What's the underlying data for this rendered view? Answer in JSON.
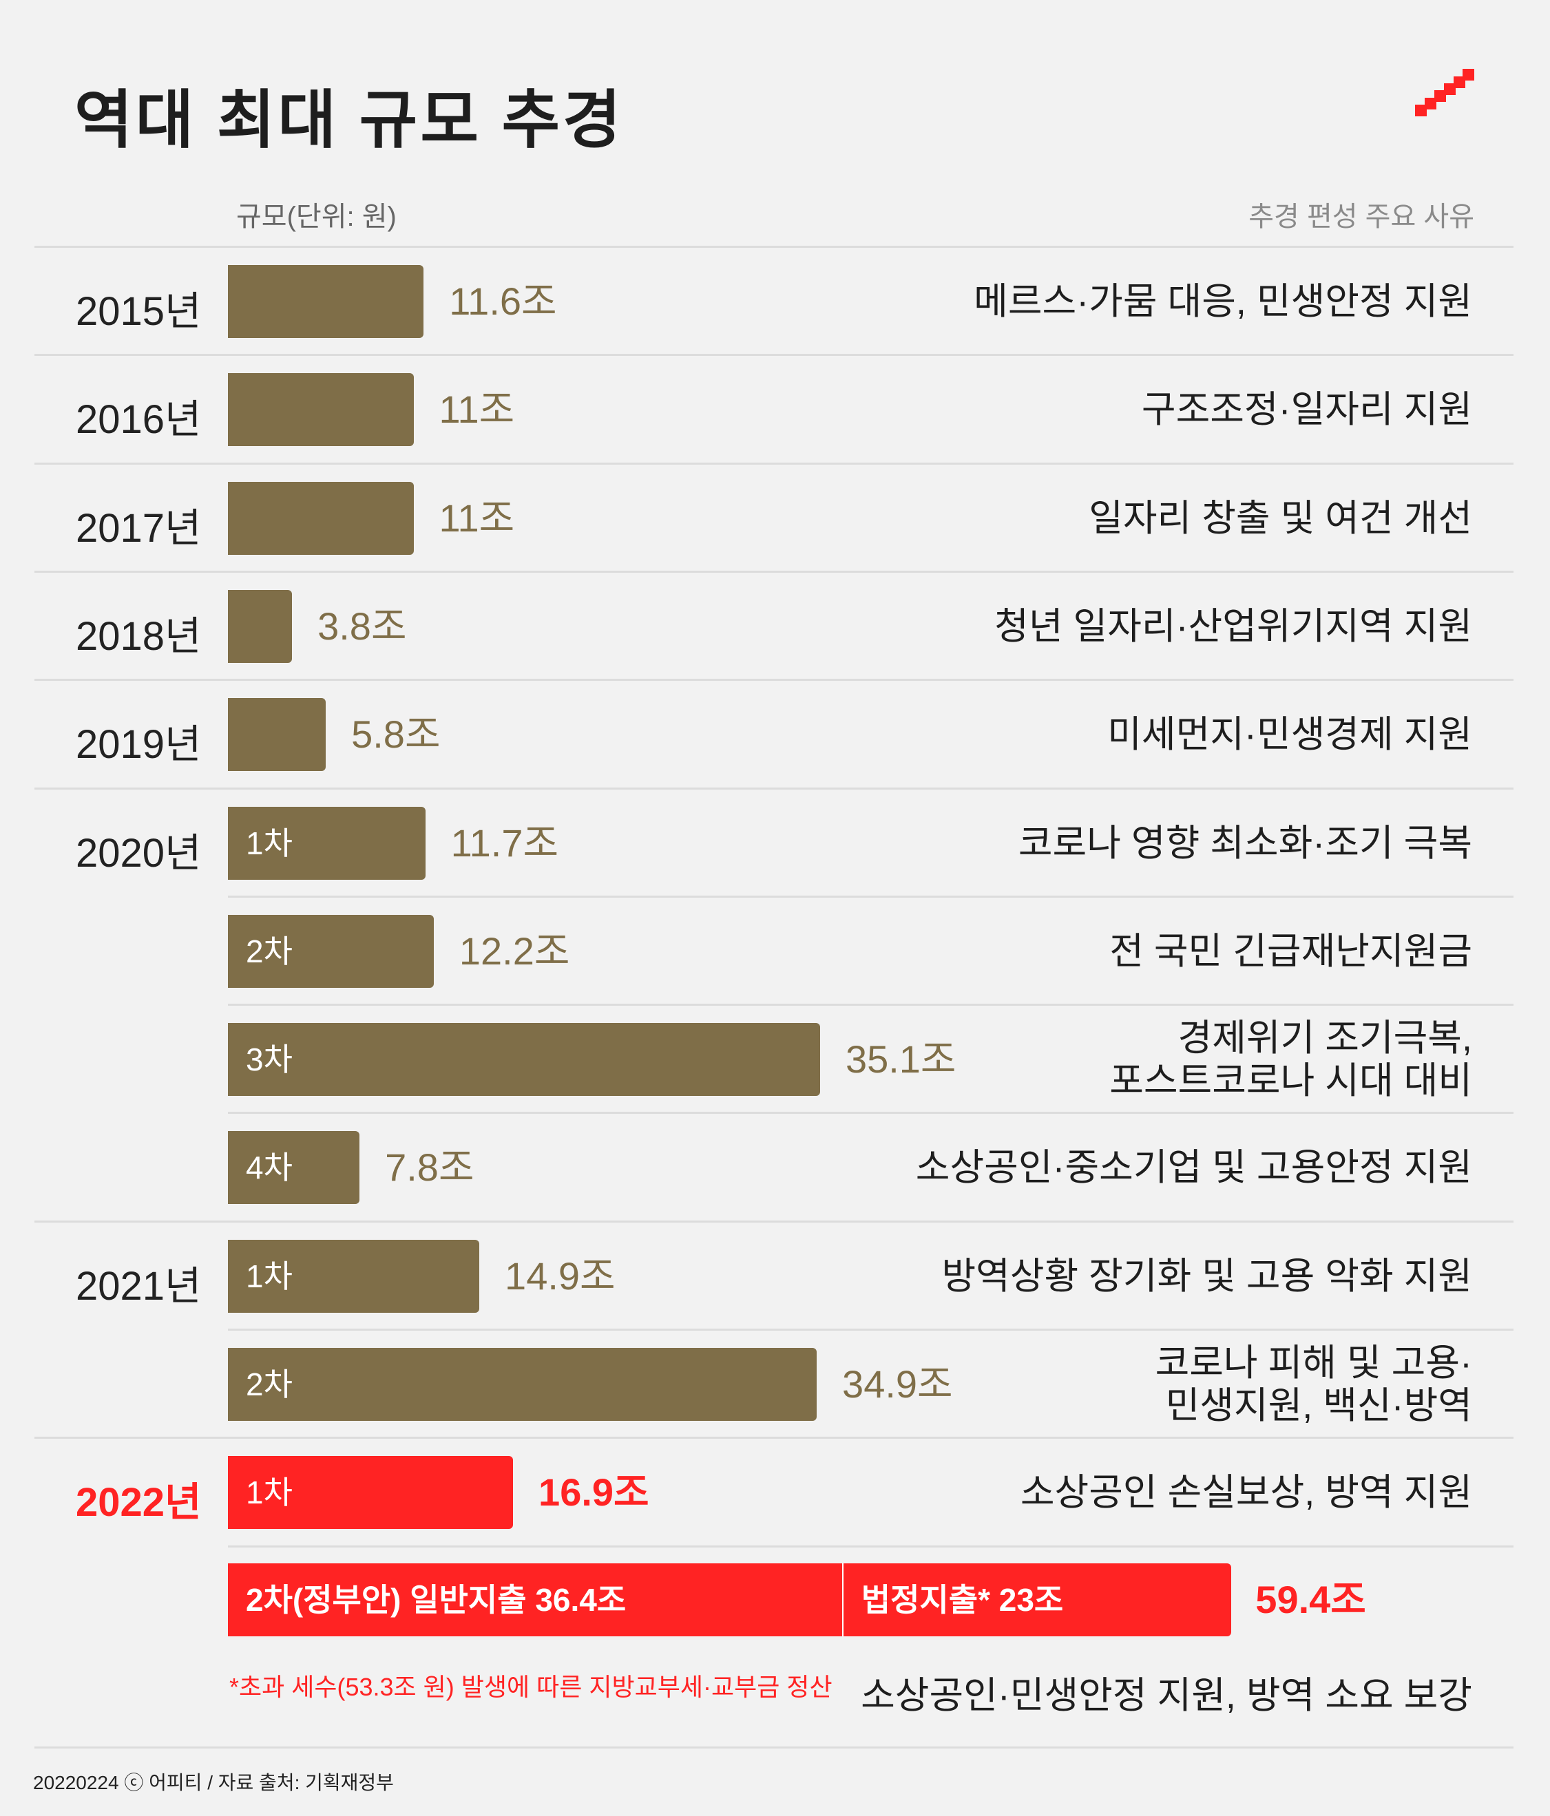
{
  "title": "역대 최대 규모 추경",
  "header": {
    "left": "규모(단위: 원)",
    "right": "추경 편성 주요 사유"
  },
  "colors": {
    "bar": "#7f6e48",
    "highlight": "#ff2323",
    "background": "#f2f2f2"
  },
  "chart_data": {
    "type": "bar",
    "orientation": "horizontal",
    "title": "역대 최대 규모 추경",
    "xlabel": "규모(단위: 원)",
    "unit": "조",
    "rows": [
      {
        "year": "2015년",
        "round": "",
        "value": 11.6,
        "value_label": "11.6조",
        "reason": [
          "메르스·가뭄 대응, 민생안정 지원"
        ],
        "highlight": false
      },
      {
        "year": "2016년",
        "round": "",
        "value": 11,
        "value_label": "11조",
        "reason": [
          "구조조정·일자리 지원"
        ],
        "highlight": false
      },
      {
        "year": "2017년",
        "round": "",
        "value": 11,
        "value_label": "11조",
        "reason": [
          "일자리 창출 및 여건 개선"
        ],
        "highlight": false
      },
      {
        "year": "2018년",
        "round": "",
        "value": 3.8,
        "value_label": "3.8조",
        "reason": [
          "청년 일자리·산업위기지역 지원"
        ],
        "highlight": false
      },
      {
        "year": "2019년",
        "round": "",
        "value": 5.8,
        "value_label": "5.8조",
        "reason": [
          "미세먼지·민생경제 지원"
        ],
        "highlight": false
      },
      {
        "year": "2020년",
        "round": "1차",
        "value": 11.7,
        "value_label": "11.7조",
        "reason": [
          "코로나 영향 최소화·조기 극복"
        ],
        "highlight": false
      },
      {
        "year": "",
        "round": "2차",
        "value": 12.2,
        "value_label": "12.2조",
        "reason": [
          "전 국민 긴급재난지원금"
        ],
        "highlight": false
      },
      {
        "year": "",
        "round": "3차",
        "value": 35.1,
        "value_label": "35.1조",
        "reason": [
          "경제위기 조기극복,",
          "포스트코로나 시대 대비"
        ],
        "highlight": false
      },
      {
        "year": "",
        "round": "4차",
        "value": 7.8,
        "value_label": "7.8조",
        "reason": [
          "소상공인·중소기업 및 고용안정 지원"
        ],
        "highlight": false
      },
      {
        "year": "2021년",
        "round": "1차",
        "value": 14.9,
        "value_label": "14.9조",
        "reason": [
          "방역상황 장기화 및 고용 악화 지원"
        ],
        "highlight": false
      },
      {
        "year": "",
        "round": "2차",
        "value": 34.9,
        "value_label": "34.9조",
        "reason": [
          "코로나 피해 및 고용·",
          "민생지원, 백신·방역"
        ],
        "highlight": false
      },
      {
        "year": "2022년",
        "round": "1차",
        "value": 16.9,
        "value_label": "16.9조",
        "reason": [
          "소상공인 손실보상, 방역 지원"
        ],
        "highlight": true
      }
    ],
    "stacked_row": {
      "segments": [
        {
          "label": "2차(정부안)  일반지출 36.4조",
          "value": 36.4
        },
        {
          "label": "법정지출* 23조",
          "value": 23
        }
      ],
      "total": 59.4,
      "total_label": "59.4조",
      "reason": "소상공인·민생안정 지원, 방역 소요 보강",
      "footnote": "*초과 세수(53.3조 원) 발생에 따른 지방교부세·교부금 정산"
    }
  },
  "credit": "20220224 ⓒ 어피티 / 자료 출처: 기획재정부"
}
